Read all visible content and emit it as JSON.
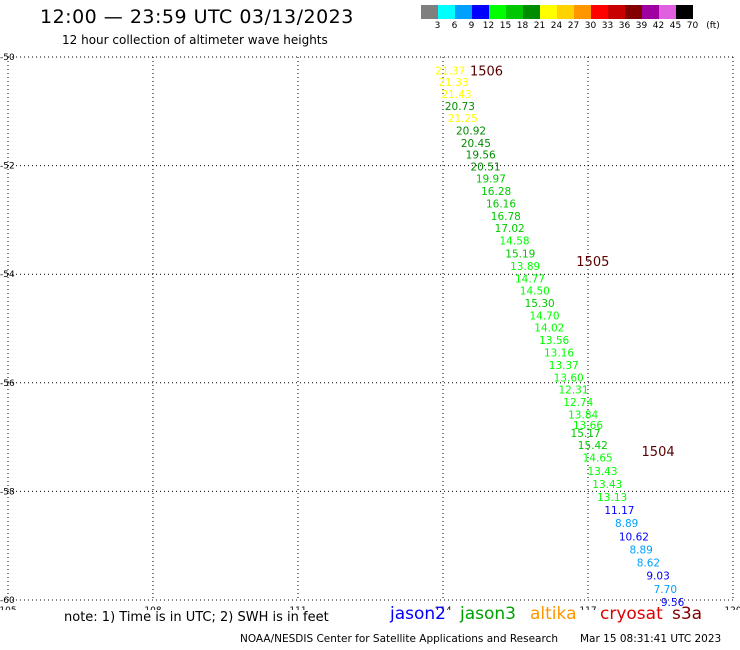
{
  "title": "12:00 — 23:59 UTC 03/13/2023",
  "subtitle": "12 hour collection of altimeter wave heights",
  "color_scale": {
    "unit": "(ft)",
    "bins": [
      {
        "label": "3",
        "color": "#7f7f7f"
      },
      {
        "label": "6",
        "color": "#00ffff"
      },
      {
        "label": "9",
        "color": "#00a0ff"
      },
      {
        "label": "12",
        "color": "#0000ff"
      },
      {
        "label": "15",
        "color": "#00ff00"
      },
      {
        "label": "18",
        "color": "#00c800"
      },
      {
        "label": "21",
        "color": "#008c00"
      },
      {
        "label": "24",
        "color": "#ffff00"
      },
      {
        "label": "27",
        "color": "#ffd200"
      },
      {
        "label": "30",
        "color": "#ff9600"
      },
      {
        "label": "33",
        "color": "#ff0000"
      },
      {
        "label": "36",
        "color": "#c80000"
      },
      {
        "label": "39",
        "color": "#820000"
      },
      {
        "label": "42",
        "color": "#a000a0"
      },
      {
        "label": "45",
        "color": "#e060e0"
      },
      {
        "label": "70",
        "color": "#000000"
      }
    ]
  },
  "map": {
    "lon_range": [
      105,
      120
    ],
    "lat_range": [
      -50,
      -60
    ],
    "lon_ticks": [
      "105",
      "108",
      "111",
      "114",
      "117",
      "120"
    ],
    "lat_ticks": [
      "-50",
      "-52",
      "-54",
      "-56",
      "-58",
      "-60"
    ],
    "grid": "dotted"
  },
  "time_labels": [
    {
      "text": "1506",
      "lon": 114.9,
      "lat": -50.25
    },
    {
      "text": "1505",
      "lon": 117.1,
      "lat": -53.76
    },
    {
      "text": "1504",
      "lon": 118.45,
      "lat": -57.26
    }
  ],
  "track_color": "#5a0000",
  "observations": [
    {
      "value": "21.37",
      "lon": 114.15,
      "lat": -50.25,
      "color": "#ffff00"
    },
    {
      "value": "21.33",
      "lon": 114.22,
      "lat": -50.46,
      "color": "#ffff00"
    },
    {
      "value": "21.43",
      "lon": 114.28,
      "lat": -50.68,
      "color": "#ffff00"
    },
    {
      "value": "20.73",
      "lon": 114.35,
      "lat": -50.9,
      "color": "#008c00"
    },
    {
      "value": "21.25",
      "lon": 114.41,
      "lat": -51.12,
      "color": "#ffff00"
    },
    {
      "value": "20.92",
      "lon": 114.58,
      "lat": -51.35,
      "color": "#008c00"
    },
    {
      "value": "20.45",
      "lon": 114.68,
      "lat": -51.58,
      "color": "#008c00"
    },
    {
      "value": "19.56",
      "lon": 114.78,
      "lat": -51.8,
      "color": "#008c00"
    },
    {
      "value": "20.51",
      "lon": 114.88,
      "lat": -52.02,
      "color": "#008c00"
    },
    {
      "value": "19.97",
      "lon": 104.99,
      "lat": -52.24,
      "color": "#00c800"
    },
    {
      "value": "16.28",
      "lon": 115.1,
      "lat": -52.47,
      "color": "#00c800"
    },
    {
      "value": "16.16",
      "lon": 115.2,
      "lat": -52.7,
      "color": "#00c800"
    },
    {
      "value": "16.78",
      "lon": 115.3,
      "lat": -52.93,
      "color": "#00c800"
    },
    {
      "value": "17.02",
      "lon": 115.38,
      "lat": -53.15,
      "color": "#00c800"
    },
    {
      "value": "14.58",
      "lon": 115.48,
      "lat": -53.38,
      "color": "#00ff00"
    },
    {
      "value": "15.19",
      "lon": 115.6,
      "lat": -53.62,
      "color": "#00c800"
    },
    {
      "value": "13.89",
      "lon": 115.7,
      "lat": -53.85,
      "color": "#00ff00"
    },
    {
      "value": "14.77",
      "lon": 115.8,
      "lat": -54.08,
      "color": "#00ff00"
    },
    {
      "value": "14.50",
      "lon": 115.9,
      "lat": -54.3,
      "color": "#00ff00"
    },
    {
      "value": "15.30",
      "lon": 116.0,
      "lat": -54.53,
      "color": "#00c800"
    },
    {
      "value": "14.70",
      "lon": 116.1,
      "lat": -54.76,
      "color": "#00ff00"
    },
    {
      "value": "14.02",
      "lon": 116.2,
      "lat": -54.98,
      "color": "#00ff00"
    },
    {
      "value": "13.56",
      "lon": 116.3,
      "lat": -55.21,
      "color": "#00ff00"
    },
    {
      "value": "13.16",
      "lon": 116.4,
      "lat": -55.44,
      "color": "#00ff00"
    },
    {
      "value": "13.37",
      "lon": 116.5,
      "lat": -55.67,
      "color": "#00ff00"
    },
    {
      "value": "13.60",
      "lon": 116.6,
      "lat": -55.9,
      "color": "#00ff00"
    },
    {
      "value": "12.31",
      "lon": 116.7,
      "lat": -56.12,
      "color": "#00ff00"
    },
    {
      "value": "12.74",
      "lon": 116.8,
      "lat": -56.35,
      "color": "#00ff00"
    },
    {
      "value": "13.84",
      "lon": 116.9,
      "lat": -56.58,
      "color": "#00ff00"
    },
    {
      "value": "13.66",
      "lon": 117.0,
      "lat": -56.78,
      "color": "#00ff00"
    },
    {
      "value": "15.17",
      "lon": 116.95,
      "lat": -56.92,
      "color": "#00c800"
    },
    {
      "value": "15.42",
      "lon": 117.1,
      "lat": -57.15,
      "color": "#00c800"
    },
    {
      "value": "14.65",
      "lon": 117.2,
      "lat": -57.38,
      "color": "#00ff00"
    },
    {
      "value": "13.43",
      "lon": 117.3,
      "lat": -57.62,
      "color": "#00ff00"
    },
    {
      "value": "13.43",
      "lon": 117.4,
      "lat": -57.86,
      "color": "#00ff00"
    },
    {
      "value": "13.13",
      "lon": 117.5,
      "lat": -58.1,
      "color": "#00ff00"
    },
    {
      "value": "11.17",
      "lon": 117.65,
      "lat": -58.34,
      "color": "#0000ff"
    },
    {
      "value": "8.89",
      "lon": 117.8,
      "lat": -58.58,
      "color": "#00a0ff"
    },
    {
      "value": "10.62",
      "lon": 117.95,
      "lat": -58.83,
      "color": "#0000ff"
    },
    {
      "value": "8.89",
      "lon": 118.1,
      "lat": -59.07,
      "color": "#00a0ff"
    },
    {
      "value": "8.62",
      "lon": 118.25,
      "lat": -59.31,
      "color": "#00a0ff"
    },
    {
      "value": "9.03",
      "lon": 118.45,
      "lat": -59.55,
      "color": "#0000ff"
    },
    {
      "value": "7.70",
      "lon": 118.6,
      "lat": -59.8,
      "color": "#00a0ff"
    },
    {
      "value": "9.56",
      "lon": 118.75,
      "lat": -60.04,
      "color": "#0000ff"
    }
  ],
  "note": "note:  1) Time is in UTC;  2) SWH is in feet",
  "satellites": [
    {
      "name": "jason2",
      "color": "#0000ff"
    },
    {
      "name": "jason3",
      "color": "#00a000"
    },
    {
      "name": "altika",
      "color": "#ff9600"
    },
    {
      "name": "cryosat",
      "color": "#e00000"
    },
    {
      "name": "s3a",
      "color": "#820000"
    }
  ],
  "footer": "NOAA/NESDIS Center for Satellite Applications and Research",
  "stamp": "Mar 15 08:31:41 UTC 2023"
}
